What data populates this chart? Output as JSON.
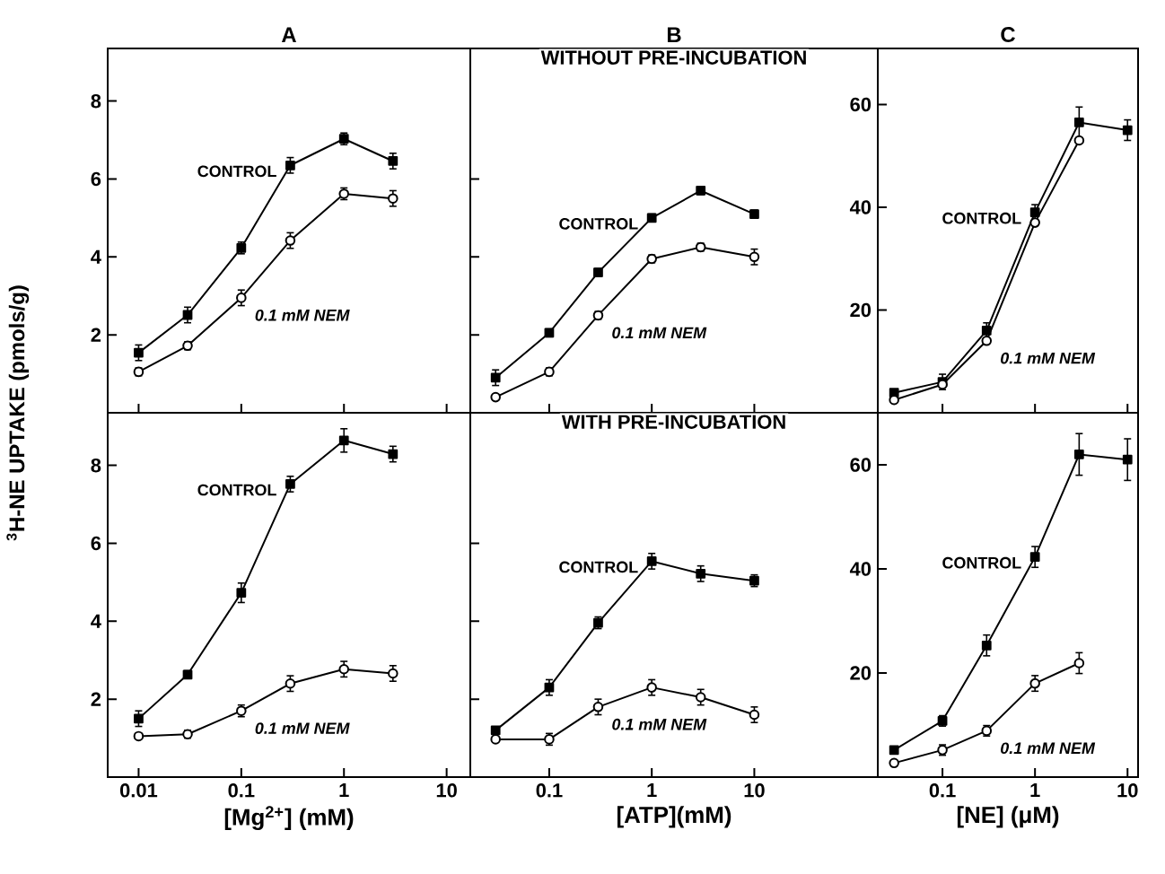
{
  "chart_data": [
    {
      "type": "line",
      "title": "A",
      "ylabel": "$^{3}$H-NE UPTAKE (pmols/g)",
      "log": "x",
      "xlim": [
        0.005,
        17
      ],
      "ylim": [
        0,
        9.35
      ],
      "xticks": [
        {
          "value": 0.01,
          "label": null
        },
        {
          "value": 0.1,
          "label": null
        },
        {
          "value": 1,
          "label": null
        },
        {
          "value": 10,
          "label": null
        }
      ],
      "yticks": [
        2,
        4,
        6,
        8
      ],
      "tick_labels": "y",
      "x": [
        0.01,
        0.03,
        0.1,
        0.3,
        1,
        3
      ],
      "series": [
        {
          "name": "CONTROL",
          "color": "#000000",
          "marker": "square",
          "values": [
            1.54,
            2.51,
            4.23,
            6.35,
            7.03,
            6.46
          ],
          "errors": [
            0.2,
            0.2,
            0.15,
            0.2,
            0.15,
            0.2
          ]
        },
        {
          "name": "0.1 mM NEM",
          "color": "#000000",
          "marker": "circle",
          "values": [
            1.05,
            1.72,
            2.95,
            4.42,
            5.62,
            5.5
          ],
          "errors": [
            0.1,
            0.1,
            0.2,
            0.2,
            0.15,
            0.2
          ]
        }
      ]
    },
    {
      "type": "line",
      "title": "B",
      "subtitle": "WITHOUT PRE-INCUBATION",
      "log": "x",
      "xlim": [
        0.017,
        160
      ],
      "ylim": [
        0,
        9.35
      ],
      "xticks": [
        {
          "value": 0.1,
          "label": null
        },
        {
          "value": 1,
          "label": null
        },
        {
          "value": 10,
          "label": null
        }
      ],
      "yticks": [
        {
          "value": 2,
          "label": null
        },
        {
          "value": 4,
          "label": null
        },
        {
          "value": 6,
          "label": null
        }
      ],
      "tick_labels": false,
      "x": [
        0.03,
        0.1,
        0.3,
        1,
        3,
        10
      ],
      "series": [
        {
          "name": "CONTROL",
          "color": "#000000",
          "marker": "square",
          "values": [
            0.9,
            2.05,
            3.6,
            5.0,
            5.7,
            5.1
          ],
          "errors": [
            0.2,
            0.1,
            0.1,
            0.1,
            0.1,
            0.1
          ]
        },
        {
          "name": "0.1 mM NEM",
          "color": "#000000",
          "marker": "circle",
          "values": [
            0.4,
            1.05,
            2.5,
            3.95,
            4.25,
            4.0
          ],
          "errors": [
            null,
            0.1,
            0.1,
            0.1,
            0.1,
            0.2
          ]
        }
      ]
    },
    {
      "type": "line",
      "title": "C",
      "log": "x",
      "xlim": [
        0.02,
        13
      ],
      "ylim": [
        0,
        70.9
      ],
      "xticks": [
        {
          "value": 0.1,
          "label": null
        },
        {
          "value": 1,
          "label": null
        },
        {
          "value": 10,
          "label": null
        }
      ],
      "yticks": [
        20,
        40,
        60
      ],
      "tick_labels": "y",
      "x": [
        0.03,
        0.1,
        0.3,
        1,
        3,
        10
      ],
      "series": [
        {
          "name": "CONTROL",
          "color": "#000000",
          "marker": "square",
          "values": [
            3.9,
            6,
            16,
            39,
            56.5,
            55
          ],
          "errors": [
            null,
            1.5,
            1.5,
            1.5,
            3,
            2
          ]
        },
        {
          "name": "0.1 mM NEM",
          "color": "#000000",
          "marker": "circle",
          "values": [
            2.5,
            5.5,
            14,
            37,
            53,
            null
          ],
          "errors": [
            null,
            null,
            null,
            null,
            null,
            null
          ]
        }
      ]
    },
    {
      "type": "line",
      "xlabel": "[Mg$^{2+}$] (mM)",
      "log": "x",
      "xlim": [
        0.005,
        17
      ],
      "ylim": [
        0,
        9.35
      ],
      "xticks": [
        {
          "value": 0.01,
          "label": "0.01"
        },
        0.1,
        1,
        10
      ],
      "yticks": [
        2,
        4,
        6,
        8
      ],
      "x": [
        0.01,
        0.03,
        0.1,
        0.3,
        1,
        3
      ],
      "series": [
        {
          "name": "CONTROL",
          "color": "#000000",
          "marker": "square",
          "values": [
            1.5,
            2.63,
            4.73,
            7.52,
            8.64,
            8.29
          ],
          "errors": [
            0.2,
            0.1,
            0.25,
            0.2,
            0.3,
            0.2
          ]
        },
        {
          "name": "0.1 mM NEM",
          "color": "#000000",
          "marker": "circle",
          "values": [
            1.05,
            1.1,
            1.7,
            2.4,
            2.77,
            2.66
          ],
          "errors": [
            null,
            0.1,
            0.15,
            0.2,
            0.2,
            0.2
          ]
        }
      ]
    },
    {
      "type": "line",
      "subtitle": "WITH PRE-INCUBATION",
      "xlabel": "[ATP](mM)",
      "log": "x",
      "xlim": [
        0.017,
        160
      ],
      "ylim": [
        0,
        9.35
      ],
      "xticks": [
        0.1,
        1,
        10
      ],
      "yticks": [
        {
          "value": 2,
          "label": null
        },
        {
          "value": 4,
          "label": null
        },
        {
          "value": 6,
          "label": null
        }
      ],
      "tick_labels": "x",
      "x": [
        0.03,
        0.1,
        0.3,
        1,
        3,
        10
      ],
      "series": [
        {
          "name": "CONTROL",
          "color": "#000000",
          "marker": "square",
          "values": [
            1.2,
            2.3,
            3.96,
            5.54,
            5.22,
            5.04
          ],
          "errors": [
            null,
            0.2,
            0.15,
            0.2,
            0.2,
            0.15
          ]
        },
        {
          "name": "0.1 mM NEM",
          "color": "#000000",
          "marker": "circle",
          "values": [
            0.97,
            0.97,
            1.8,
            2.3,
            2.05,
            1.6
          ],
          "errors": [
            null,
            0.15,
            0.2,
            0.2,
            0.2,
            0.2
          ]
        }
      ]
    },
    {
      "type": "line",
      "xlabel": "[NE] (μM)",
      "log": "x",
      "xlim": [
        0.02,
        13
      ],
      "ylim": [
        0,
        70
      ],
      "xticks": [
        0.1,
        1,
        10
      ],
      "yticks": [
        20,
        40,
        60
      ],
      "x": [
        0.03,
        0.1,
        0.3,
        1,
        3,
        10
      ],
      "series": [
        {
          "name": "CONTROL",
          "color": "#000000",
          "marker": "square",
          "values": [
            5.2,
            10.8,
            25.3,
            42.3,
            62,
            61
          ],
          "errors": [
            null,
            1,
            2,
            2,
            4,
            4
          ]
        },
        {
          "name": "0.1 mM NEM",
          "color": "#000000",
          "marker": "circle",
          "values": [
            2.7,
            5.2,
            8.9,
            18,
            21.9,
            null
          ],
          "errors": [
            null,
            1,
            1,
            1.5,
            2,
            null
          ]
        }
      ]
    }
  ]
}
